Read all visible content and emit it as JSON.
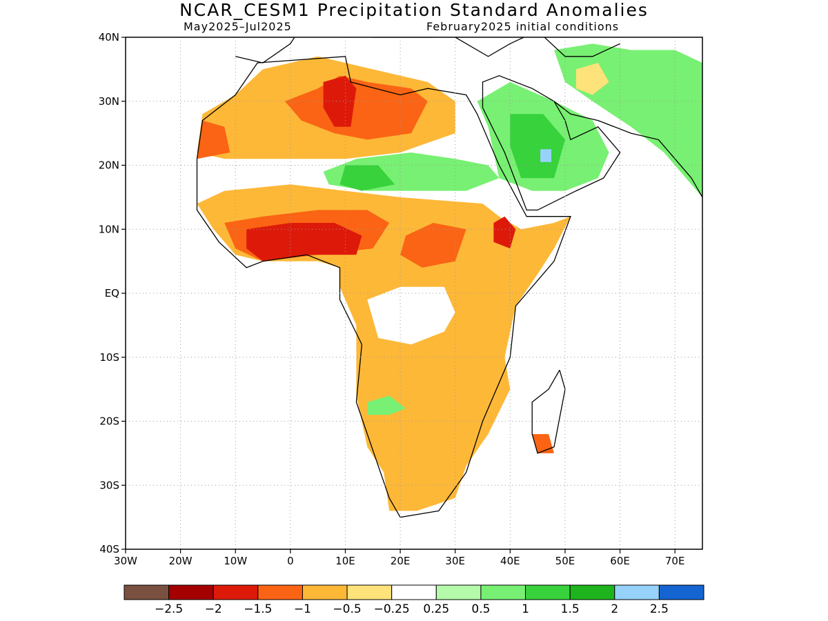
{
  "title": "NCAR_CESM1 Precipitation Standard Anomalies",
  "subtitle_left": "May2025–Jul2025",
  "subtitle_right": "February2025 initial conditions",
  "map": {
    "lon_range": [
      -30,
      75
    ],
    "lat_range": [
      -40,
      40
    ],
    "lon_ticks": [
      {
        "v": -30,
        "label": "30W"
      },
      {
        "v": -20,
        "label": "20W"
      },
      {
        "v": -10,
        "label": "10W"
      },
      {
        "v": 0,
        "label": "0"
      },
      {
        "v": 10,
        "label": "10E"
      },
      {
        "v": 20,
        "label": "20E"
      },
      {
        "v": 30,
        "label": "30E"
      },
      {
        "v": 40,
        "label": "40E"
      },
      {
        "v": 50,
        "label": "50E"
      },
      {
        "v": 60,
        "label": "60E"
      },
      {
        "v": 70,
        "label": "70E"
      }
    ],
    "lat_ticks": [
      {
        "v": 40,
        "label": "40N"
      },
      {
        "v": 30,
        "label": "30N"
      },
      {
        "v": 20,
        "label": "20N"
      },
      {
        "v": 10,
        "label": "10N"
      },
      {
        "v": 0,
        "label": "EQ"
      },
      {
        "v": -10,
        "label": "10S"
      },
      {
        "v": -20,
        "label": "20S"
      },
      {
        "v": -30,
        "label": "30S"
      },
      {
        "v": -40,
        "label": "40S"
      }
    ],
    "grid": true
  },
  "colorbar": {
    "colors": [
      "#7a5040",
      "#a50000",
      "#dd1a0a",
      "#fa6414",
      "#fdb838",
      "#fee27a",
      "#ffffff",
      "#b4faaa",
      "#78f073",
      "#37d23c",
      "#1eb41e",
      "#96d2fa",
      "#1464d2"
    ],
    "labels": [
      "−2.5",
      "−2",
      "−1.5",
      "−1",
      "−0.5",
      "−0.25",
      "0.25",
      "0.5",
      "1",
      "1.5",
      "2",
      "2.5"
    ]
  },
  "anomaly_regions": [
    {
      "name": "nw-africa-dry",
      "level": 4,
      "pts": [
        [
          -16,
          28
        ],
        [
          -10,
          31
        ],
        [
          -5,
          35
        ],
        [
          5,
          37
        ],
        [
          25,
          33
        ],
        [
          30,
          30
        ],
        [
          30,
          25
        ],
        [
          20,
          22
        ],
        [
          10,
          21
        ],
        [
          -5,
          21
        ],
        [
          -12,
          21
        ],
        [
          -17,
          22
        ]
      ]
    },
    {
      "name": "sahara-very-dry",
      "level": 3,
      "pts": [
        [
          -1,
          30
        ],
        [
          5,
          32
        ],
        [
          9,
          34
        ],
        [
          14,
          33
        ],
        [
          22,
          32
        ],
        [
          25,
          30
        ],
        [
          22,
          25
        ],
        [
          14,
          24
        ],
        [
          8,
          25
        ],
        [
          2,
          27
        ]
      ]
    },
    {
      "name": "libya-extreme",
      "level": 2,
      "pts": [
        [
          6,
          33
        ],
        [
          10,
          34
        ],
        [
          12,
          32
        ],
        [
          11,
          26
        ],
        [
          8,
          26
        ],
        [
          6,
          29
        ]
      ]
    },
    {
      "name": "mauritania-dry",
      "level": 3,
      "pts": [
        [
          -17,
          21
        ],
        [
          -16,
          27
        ],
        [
          -12,
          26
        ],
        [
          -11,
          22
        ]
      ]
    },
    {
      "name": "sahel-green",
      "level": 8,
      "pts": [
        [
          6,
          19
        ],
        [
          12,
          21
        ],
        [
          22,
          22
        ],
        [
          30,
          21
        ],
        [
          36,
          20
        ],
        [
          38,
          18
        ],
        [
          32,
          16
        ],
        [
          22,
          16
        ],
        [
          14,
          16
        ],
        [
          7,
          17
        ]
      ]
    },
    {
      "name": "sahel-green-core",
      "level": 9,
      "pts": [
        [
          10,
          20
        ],
        [
          16,
          20
        ],
        [
          19,
          17
        ],
        [
          13,
          16
        ],
        [
          9,
          17
        ]
      ]
    },
    {
      "name": "arabia-wet",
      "level": 8,
      "pts": [
        [
          34,
          30
        ],
        [
          40,
          33
        ],
        [
          48,
          30
        ],
        [
          55,
          27
        ],
        [
          58,
          22
        ],
        [
          56,
          18
        ],
        [
          50,
          16
        ],
        [
          44,
          16
        ],
        [
          38,
          18
        ],
        [
          36,
          26
        ]
      ]
    },
    {
      "name": "arabia-wet-core",
      "level": 9,
      "pts": [
        [
          40,
          28
        ],
        [
          46,
          28
        ],
        [
          50,
          24
        ],
        [
          48,
          18
        ],
        [
          42,
          18
        ],
        [
          40,
          23
        ]
      ]
    },
    {
      "name": "arabia-blue",
      "level": 11,
      "pts": [
        [
          45.5,
          22.5
        ],
        [
          47.5,
          22.5
        ],
        [
          47.5,
          20.5
        ],
        [
          45.5,
          20.5
        ]
      ]
    },
    {
      "name": "iran-wet",
      "level": 8,
      "pts": [
        [
          48,
          38
        ],
        [
          55,
          39
        ],
        [
          62,
          38
        ],
        [
          70,
          38
        ],
        [
          75,
          36
        ],
        [
          75,
          15
        ],
        [
          68,
          22
        ],
        [
          62,
          26
        ],
        [
          55,
          30
        ],
        [
          50,
          33
        ]
      ]
    },
    {
      "name": "iran-dry-patch",
      "level": 5,
      "pts": [
        [
          52,
          35
        ],
        [
          56,
          36
        ],
        [
          58,
          33
        ],
        [
          55,
          31
        ],
        [
          52,
          32
        ]
      ]
    },
    {
      "name": "west-africa-dry",
      "level": 4,
      "pts": [
        [
          -17,
          14
        ],
        [
          -12,
          16
        ],
        [
          0,
          17
        ],
        [
          10,
          16
        ],
        [
          20,
          15
        ],
        [
          35,
          14
        ],
        [
          38,
          12
        ],
        [
          42,
          10
        ],
        [
          48,
          11
        ],
        [
          51,
          12
        ],
        [
          48,
          7
        ],
        [
          45,
          3
        ],
        [
          41,
          -2
        ],
        [
          40,
          -6
        ],
        [
          39,
          -10
        ],
        [
          40,
          -15
        ],
        [
          36,
          -22
        ],
        [
          32,
          -27
        ],
        [
          30,
          -32
        ],
        [
          23,
          -34
        ],
        [
          18,
          -34
        ],
        [
          17,
          -28
        ],
        [
          14,
          -24
        ],
        [
          12,
          -16
        ],
        [
          12,
          -5
        ],
        [
          9,
          1
        ],
        [
          9,
          4
        ],
        [
          5,
          5
        ],
        [
          -5,
          5
        ],
        [
          -10,
          6
        ],
        [
          -14,
          10
        ]
      ]
    },
    {
      "name": "guinea-very-dry",
      "level": 3,
      "pts": [
        [
          -12,
          11
        ],
        [
          -5,
          12
        ],
        [
          5,
          13
        ],
        [
          14,
          13
        ],
        [
          18,
          11
        ],
        [
          15,
          7
        ],
        [
          5,
          6
        ],
        [
          -5,
          5
        ],
        [
          -10,
          7
        ]
      ]
    },
    {
      "name": "guinea-extreme",
      "level": 2,
      "pts": [
        [
          -8,
          10
        ],
        [
          0,
          11
        ],
        [
          8,
          11
        ],
        [
          13,
          9
        ],
        [
          12,
          6
        ],
        [
          3,
          6
        ],
        [
          -5,
          5
        ],
        [
          -8,
          7
        ]
      ]
    },
    {
      "name": "sudan-dry",
      "level": 3,
      "pts": [
        [
          21,
          9
        ],
        [
          26,
          11
        ],
        [
          32,
          10
        ],
        [
          30,
          5
        ],
        [
          24,
          4
        ],
        [
          20,
          6
        ]
      ]
    },
    {
      "name": "ethiopia-extreme",
      "level": 2,
      "pts": [
        [
          37,
          11
        ],
        [
          39,
          12
        ],
        [
          41,
          10
        ],
        [
          40,
          7
        ],
        [
          37,
          8
        ]
      ]
    },
    {
      "name": "congo-neutral",
      "level": 6,
      "pts": [
        [
          14,
          -1
        ],
        [
          20,
          1
        ],
        [
          28,
          1
        ],
        [
          30,
          -3
        ],
        [
          28,
          -6
        ],
        [
          22,
          -8
        ],
        [
          16,
          -7
        ]
      ]
    },
    {
      "name": "angola-green",
      "level": 8,
      "pts": [
        [
          14,
          -17
        ],
        [
          18,
          -16
        ],
        [
          21,
          -18
        ],
        [
          18,
          -19
        ],
        [
          14,
          -19
        ]
      ]
    },
    {
      "name": "madagascar-dry",
      "level": 3,
      "pts": [
        [
          44,
          -22
        ],
        [
          47,
          -22
        ],
        [
          48,
          -25
        ],
        [
          45,
          -25
        ]
      ]
    }
  ]
}
